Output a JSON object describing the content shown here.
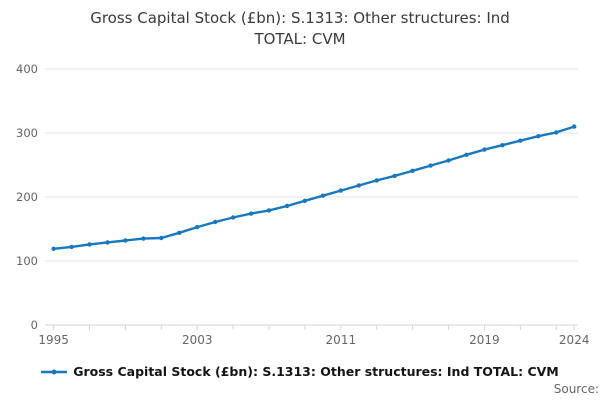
{
  "title_lines": [
    "Gross Capital Stock (£bn): S.1313: Other structures: Ind",
    "TOTAL: CVM"
  ],
  "legend": {
    "label": "Gross Capital Stock (£bn): S.1313: Other structures: Ind TOTAL: CVM"
  },
  "source_label": "Source:",
  "colors": {
    "line": "#1878be",
    "grid": "#e6e6e6",
    "axis": "#ccd6eb",
    "tick_label": "#666666",
    "title": "#3a3a3a"
  },
  "chart_data": {
    "type": "line",
    "title": "Gross Capital Stock (£bn): S.1313: Other structures: Ind TOTAL: CVM",
    "xlabel": "",
    "ylabel": "",
    "x": [
      1995,
      1996,
      1997,
      1998,
      1999,
      2000,
      2001,
      2002,
      2003,
      2004,
      2005,
      2006,
      2007,
      2008,
      2009,
      2010,
      2011,
      2012,
      2013,
      2014,
      2015,
      2016,
      2017,
      2018,
      2019,
      2020,
      2021,
      2022,
      2023,
      2024
    ],
    "series": [
      {
        "name": "Gross Capital Stock (£bn): S.1313: Other structures: Ind TOTAL: CVM",
        "values": [
          119,
          122,
          126,
          129,
          132,
          135,
          136,
          144,
          153,
          161,
          168,
          174,
          179,
          186,
          194,
          202,
          210,
          218,
          226,
          233,
          241,
          249,
          257,
          266,
          274,
          281,
          288,
          295,
          301,
          310
        ]
      }
    ],
    "ylim": [
      0,
      400
    ],
    "yticks": [
      0,
      100,
      200,
      300,
      400
    ],
    "xtick_years": [
      1995,
      1997,
      1999,
      2001,
      2003,
      2005,
      2007,
      2009,
      2011,
      2013,
      2015,
      2017,
      2019,
      2021,
      2023,
      2024
    ],
    "xtick_labels": [
      "1995",
      "",
      "",
      "",
      "2003",
      "",
      "",
      "",
      "2011",
      "",
      "",
      "",
      "2019",
      "",
      "",
      "2024"
    ],
    "grid": true,
    "legend_position": "bottom",
    "marker": "circle"
  }
}
